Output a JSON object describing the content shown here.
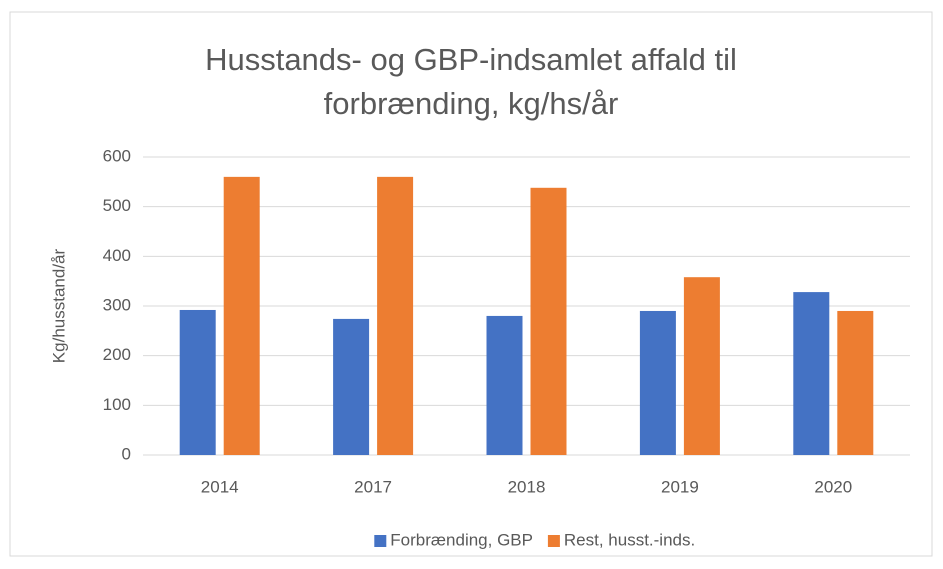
{
  "chart_data": {
    "type": "bar",
    "title": "Husstands- og GBP-indsamlet affald til forbrænding, kg/hs/år",
    "y_label": "Kg/husstand/år",
    "categories": [
      "2014",
      "2017",
      "2018",
      "2019",
      "2020"
    ],
    "series": [
      {
        "name": "Forbrænding, GBP",
        "color": "#4472c4",
        "values": [
          292,
          274,
          280,
          290,
          328
        ]
      },
      {
        "name": "Rest, husst.-inds.",
        "color": "#ed7d31",
        "values": [
          560,
          560,
          538,
          358,
          290
        ]
      }
    ],
    "ylim": [
      0,
      600
    ],
    "yticks": [
      0,
      100,
      200,
      300,
      400,
      500,
      600
    ],
    "grid": true,
    "legend": "bottom"
  }
}
